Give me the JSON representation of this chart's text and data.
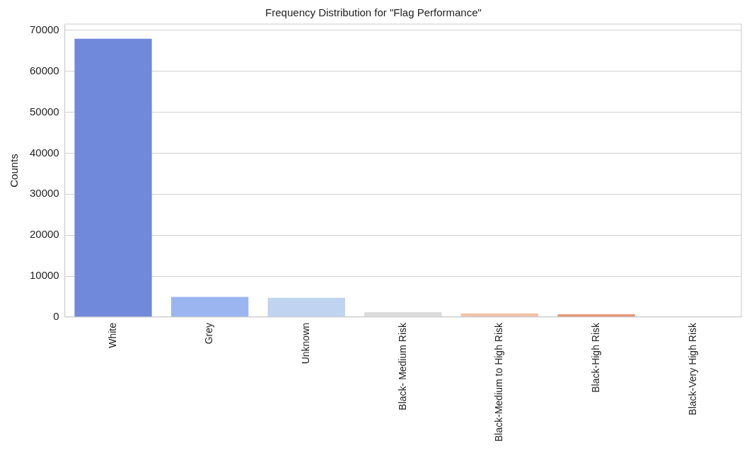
{
  "chart_data": {
    "type": "bar",
    "title": "Frequency Distribution for \"Flag Performance\"",
    "ylabel": "Counts",
    "categories": [
      "White",
      "Grey",
      "Unknown",
      "Black- Medium Risk",
      "Black-Medium to High Risk",
      "Black-High Risk",
      "Black-Very High Risk"
    ],
    "values": [
      67900,
      4900,
      4700,
      1200,
      900,
      700,
      0
    ],
    "colors": [
      "#7089db",
      "#9ab5f0",
      "#c0d3f0",
      "#dcdcdc",
      "#efc3a9",
      "#e6957a",
      "#c9503f"
    ],
    "ylim": [
      0,
      71500
    ],
    "yticks": [
      0,
      10000,
      20000,
      30000,
      40000,
      50000,
      60000,
      70000
    ],
    "grid": "y",
    "legend": false
  }
}
